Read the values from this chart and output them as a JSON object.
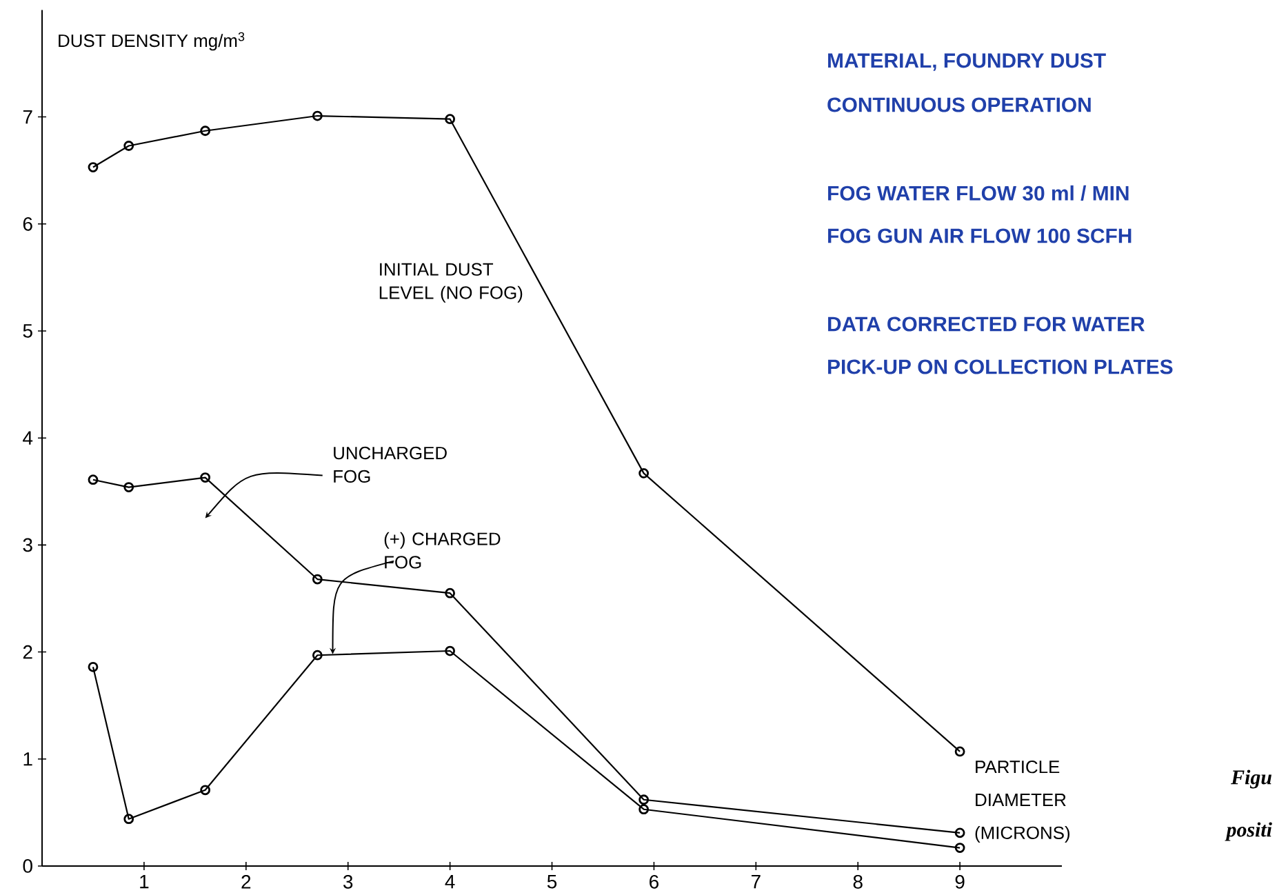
{
  "chart_data": {
    "type": "line",
    "ylabel": "DUST DENSITY   mg/m$^{3}$",
    "xlabel": "PARTICLE DIAMETER (MICRONS)",
    "x": [
      0.5,
      0.85,
      1.6,
      2.7,
      4.0,
      5.9,
      9.0
    ],
    "series": [
      {
        "name": "INITIAL DUST LEVEL (NO FOG)",
        "color": "#000000",
        "values": [
          6.53,
          6.73,
          6.87,
          7.01,
          6.98,
          3.67,
          1.07
        ]
      },
      {
        "name": "UNCHARGED FOG",
        "color": "#000000",
        "values": [
          3.61,
          3.54,
          3.63,
          2.68,
          2.55,
          0.62,
          0.31
        ]
      },
      {
        "name": "(+) CHARGED FOG",
        "color": "#000000",
        "values": [
          1.86,
          0.44,
          0.71,
          1.97,
          2.01,
          0.53,
          0.17
        ]
      }
    ],
    "xlim": [
      0,
      10
    ],
    "ylim": [
      0,
      8
    ],
    "xticks": [
      1,
      2,
      3,
      4,
      5,
      6,
      7,
      8,
      9
    ],
    "yticks": [
      0,
      1,
      2,
      3,
      4,
      5,
      6,
      7
    ],
    "marker": "circle",
    "line_style": "solid",
    "grid": false,
    "annotations": [
      "MATERIAL, FOUNDRY DUST",
      "CONTINUOUS OPERATION",
      "FOG WATER FLOW 30 ml / MIN",
      "FOG GUN AIR FLOW 100 SCFH",
      "DATA CORRECTED FOR WATER",
      "PICK-UP ON COLLECTION PLATES",
      "Figu",
      "positi"
    ]
  }
}
